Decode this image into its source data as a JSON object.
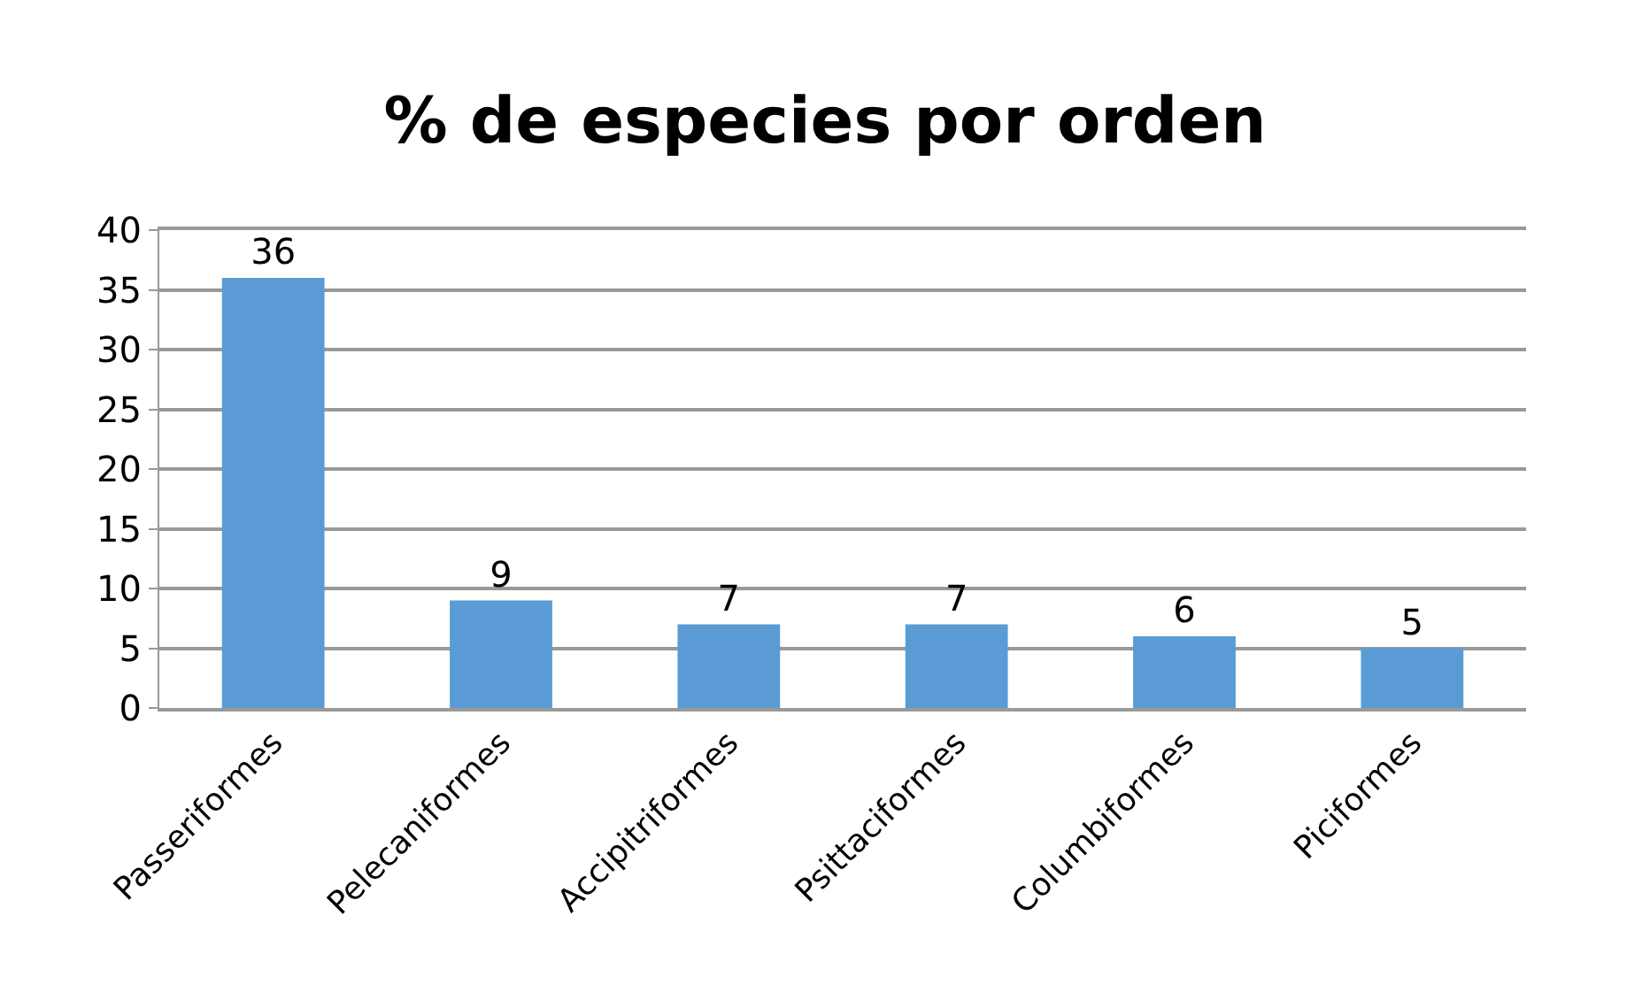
{
  "chart_data": {
    "type": "bar",
    "title": "% de especies por orden",
    "categories": [
      "Passeriformes",
      "Pelecaniformes",
      "Accipitriformes",
      "Psittaciformes",
      "Columbiformes",
      "Piciformes"
    ],
    "values": [
      36,
      9,
      7,
      7,
      6,
      5
    ],
    "color": "#5b9bd5",
    "ylim": [
      0,
      40
    ],
    "yticks": [
      0,
      5,
      10,
      15,
      20,
      25,
      30,
      35,
      40
    ],
    "grid": "y",
    "data_labels": true
  }
}
